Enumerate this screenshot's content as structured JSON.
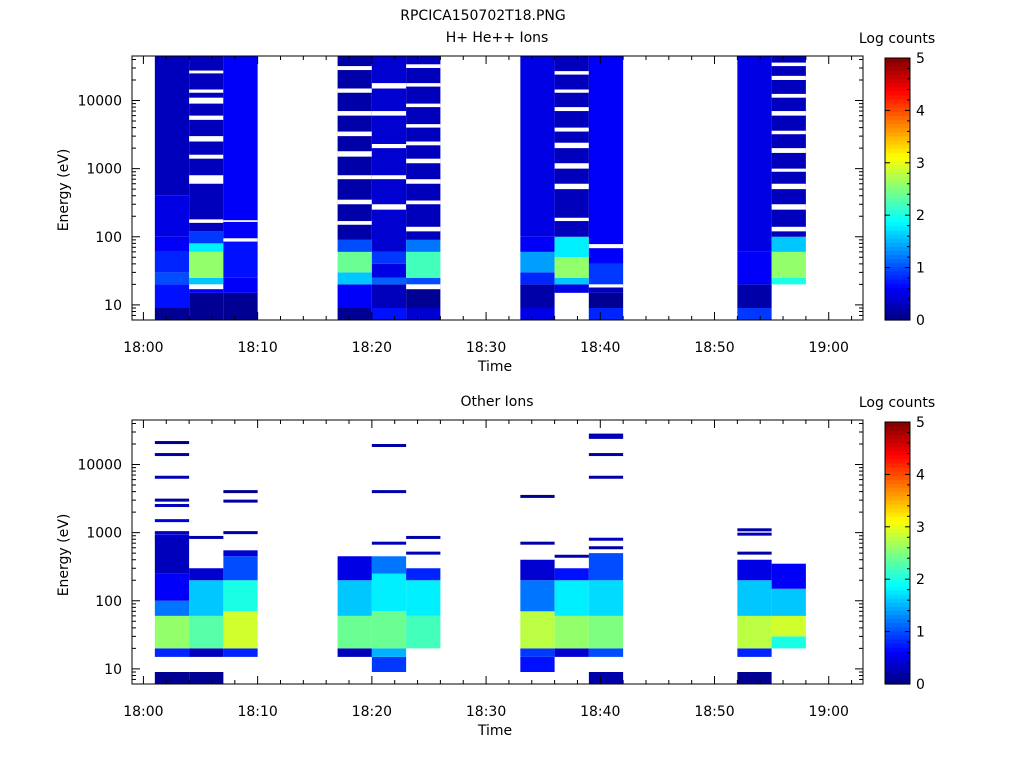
{
  "figure_title": "RPCICA150702T18.PNG",
  "colors": {
    "colormap": [
      "#00007f",
      "#0000ff",
      "#007fff",
      "#00ffff",
      "#7fff7f",
      "#ffff00",
      "#ff7f00",
      "#ff0000",
      "#7f0000"
    ]
  },
  "chart_data": [
    {
      "type": "heatmap",
      "title": "H+ He++ Ions",
      "xlabel": "Time",
      "ylabel": "Energy (eV)",
      "y_scale": "log",
      "ylim": [
        6,
        45000
      ],
      "xlim": [
        "17:59",
        "19:03"
      ],
      "x_ticks": [
        "18:00",
        "18:10",
        "18:20",
        "18:30",
        "18:40",
        "18:50",
        "19:00"
      ],
      "y_ticks": [
        "10",
        "100",
        "1000",
        "10000"
      ],
      "colorbar": {
        "label": "Log counts",
        "range": [
          0,
          5
        ],
        "ticks": [
          "0",
          "1",
          "2",
          "3",
          "4",
          "5"
        ]
      },
      "sweeps": [
        {
          "t0": "18:01",
          "t1": "18:04",
          "bands": [
            [
              6,
              9,
              0.1
            ],
            [
              9,
              20,
              0.7
            ],
            [
              20,
              30,
              1.0
            ],
            [
              30,
              60,
              0.8
            ],
            [
              60,
              100,
              0.6
            ],
            [
              100,
              400,
              0.5
            ],
            [
              400,
              45000,
              0.3
            ]
          ],
          "gaps": []
        },
        {
          "t0": "18:04",
          "t1": "18:07",
          "bands": [
            [
              6,
              15,
              0.1
            ],
            [
              15,
              20,
              0.6
            ],
            [
              20,
              25,
              1.6
            ],
            [
              25,
              60,
              2.6
            ],
            [
              60,
              80,
              1.8
            ],
            [
              80,
              120,
              0.9
            ],
            [
              120,
              45000,
              0.3
            ]
          ],
          "gaps": [
            [
              17,
              20
            ],
            [
              160,
              180
            ],
            [
              600,
              800
            ],
            [
              1400,
              1600
            ],
            [
              2500,
              3000
            ],
            [
              5200,
              6000
            ],
            [
              9000,
              11000
            ],
            [
              13000,
              14500
            ],
            [
              25000,
              27500
            ]
          ]
        },
        {
          "t0": "18:07",
          "t1": "18:10",
          "bands": [
            [
              6,
              15,
              0.1
            ],
            [
              15,
              25,
              0.6
            ],
            [
              25,
              90,
              0.7
            ],
            [
              90,
              45000,
              0.6
            ]
          ],
          "gaps": [
            [
              85,
              95
            ],
            [
              165,
              175
            ]
          ]
        },
        {
          "t0": "18:17",
          "t1": "18:20",
          "bands": [
            [
              6,
              9,
              0.1
            ],
            [
              9,
              20,
              0.6
            ],
            [
              20,
              30,
              1.6
            ],
            [
              30,
              60,
              2.4
            ],
            [
              60,
              90,
              1.0
            ],
            [
              90,
              45000,
              0.2
            ]
          ],
          "gaps": [
            [
              150,
              170
            ],
            [
              300,
              350
            ],
            [
              700,
              800
            ],
            [
              1500,
              1800
            ],
            [
              3000,
              3500
            ],
            [
              6000,
              7000
            ],
            [
              13000,
              15000
            ],
            [
              28000,
              32000
            ]
          ]
        },
        {
          "t0": "18:20",
          "t1": "18:23",
          "bands": [
            [
              6,
              9,
              0.7
            ],
            [
              9,
              20,
              0.3
            ],
            [
              20,
              25,
              1.1
            ],
            [
              25,
              40,
              0.5
            ],
            [
              40,
              60,
              0.9
            ],
            [
              60,
              45000,
              0.4
            ]
          ],
          "gaps": [
            [
              250,
              300
            ],
            [
              700,
              800
            ],
            [
              2000,
              2300
            ],
            [
              6000,
              7000
            ],
            [
              15000,
              18000
            ]
          ]
        },
        {
          "t0": "18:23",
          "t1": "18:26",
          "bands": [
            [
              6,
              9,
              0.4
            ],
            [
              9,
              20,
              0.1
            ],
            [
              20,
              25,
              1.0
            ],
            [
              25,
              60,
              2.2
            ],
            [
              60,
              90,
              1.2
            ],
            [
              90,
              45000,
              0.3
            ]
          ],
          "gaps": [
            [
              17,
              20
            ],
            [
              120,
              140
            ],
            [
              300,
              340
            ],
            [
              600,
              700
            ],
            [
              1200,
              1400
            ],
            [
              2200,
              2500
            ],
            [
              4000,
              4500
            ],
            [
              8000,
              9000
            ],
            [
              16000,
              18000
            ],
            [
              30000,
              34000
            ]
          ]
        },
        {
          "t0": "18:33",
          "t1": "18:36",
          "bands": [
            [
              6,
              9,
              0.5
            ],
            [
              9,
              20,
              0.2
            ],
            [
              20,
              30,
              0.8
            ],
            [
              30,
              60,
              1.4
            ],
            [
              60,
              100,
              0.6
            ],
            [
              100,
              45000,
              0.5
            ]
          ],
          "gaps": []
        },
        {
          "t0": "18:36",
          "t1": "18:39",
          "bands": [
            [
              6,
              15,
              0.1
            ],
            [
              15,
              20,
              0.5
            ],
            [
              20,
              25,
              1.6
            ],
            [
              25,
              50,
              2.6
            ],
            [
              50,
              100,
              1.8
            ],
            [
              100,
              45000,
              0.3
            ]
          ],
          "gaps": [
            [
              6,
              15
            ],
            [
              170,
              190
            ],
            [
              500,
              600
            ],
            [
              1000,
              1200
            ],
            [
              2000,
              2400
            ],
            [
              3500,
              4000
            ],
            [
              7000,
              8000
            ],
            [
              13000,
              14500
            ],
            [
              24000,
              27000
            ]
          ]
        },
        {
          "t0": "18:39",
          "t1": "18:42",
          "bands": [
            [
              6,
              9,
              0.8
            ],
            [
              9,
              15,
              0.1
            ],
            [
              15,
              20,
              0.3
            ],
            [
              20,
              40,
              0.9
            ],
            [
              40,
              70,
              0.6
            ],
            [
              70,
              45000,
              0.6
            ]
          ],
          "gaps": [
            [
              18,
              20
            ],
            [
              68,
              78
            ]
          ]
        },
        {
          "t0": "18:52",
          "t1": "18:55",
          "bands": [
            [
              6,
              9,
              0.9
            ],
            [
              9,
              20,
              0.2
            ],
            [
              20,
              60,
              0.6
            ],
            [
              60,
              45000,
              0.5
            ]
          ],
          "gaps": []
        },
        {
          "t0": "18:55",
          "t1": "18:58",
          "bands": [
            [
              20,
              25,
              2.0
            ],
            [
              25,
              60,
              2.6
            ],
            [
              60,
              100,
              1.6
            ],
            [
              100,
              45000,
              0.3
            ]
          ],
          "gaps": [
            [
              120,
              140
            ],
            [
              250,
              300
            ],
            [
              500,
              600
            ],
            [
              900,
              1000
            ],
            [
              1700,
              2000
            ],
            [
              3200,
              3600
            ],
            [
              6000,
              7000
            ],
            [
              11000,
              12500
            ],
            [
              20000,
              23000
            ],
            [
              32000,
              36000
            ]
          ]
        }
      ]
    },
    {
      "type": "heatmap",
      "title": "Other Ions",
      "xlabel": "Time",
      "ylabel": "Energy (eV)",
      "y_scale": "log",
      "ylim": [
        6,
        45000
      ],
      "xlim": [
        "17:59",
        "19:03"
      ],
      "x_ticks": [
        "18:00",
        "18:10",
        "18:20",
        "18:30",
        "18:40",
        "18:50",
        "19:00"
      ],
      "y_ticks": [
        "10",
        "100",
        "1000",
        "10000"
      ],
      "colorbar": {
        "label": "Log counts",
        "range": [
          0,
          5
        ],
        "ticks": [
          "0",
          "1",
          "2",
          "3",
          "4",
          "5"
        ]
      },
      "sweeps": [
        {
          "t0": "18:01",
          "t1": "18:04",
          "bands": [
            [
              6,
              9,
              0.1
            ],
            [
              15,
              20,
              0.8
            ],
            [
              20,
              60,
              2.6
            ],
            [
              60,
              100,
              1.2
            ],
            [
              100,
              250,
              0.6
            ],
            [
              250,
              900,
              0.3
            ]
          ],
          "lines": [
            [
              21000,
              0.1
            ],
            [
              14000,
              0.2
            ],
            [
              6500,
              0.3
            ],
            [
              3000,
              0.2
            ],
            [
              2500,
              0.3
            ],
            [
              1500,
              0.5
            ],
            [
              1000,
              0.3
            ],
            [
              900,
              0.4
            ]
          ]
        },
        {
          "t0": "18:04",
          "t1": "18:07",
          "bands": [
            [
              6,
              9,
              0.1
            ],
            [
              15,
              20,
              0.3
            ],
            [
              20,
              60,
              2.3
            ],
            [
              60,
              200,
              1.6
            ],
            [
              200,
              300,
              0.4
            ]
          ],
          "lines": [
            [
              850,
              0.2
            ]
          ]
        },
        {
          "t0": "18:07",
          "t1": "18:10",
          "bands": [
            [
              15,
              20,
              0.8
            ],
            [
              20,
              70,
              2.9
            ],
            [
              70,
              200,
              2.0
            ],
            [
              200,
              450,
              1.0
            ],
            [
              450,
              550,
              0.4
            ]
          ],
          "lines": [
            [
              4000,
              0.1
            ],
            [
              2900,
              0.2
            ],
            [
              1000,
              0.2
            ]
          ]
        },
        {
          "t0": "18:17",
          "t1": "18:20",
          "bands": [
            [
              15,
              20,
              0.3
            ],
            [
              20,
              60,
              2.4
            ],
            [
              60,
              200,
              1.6
            ],
            [
              200,
              450,
              0.5
            ]
          ],
          "lines": []
        },
        {
          "t0": "18:20",
          "t1": "18:23",
          "bands": [
            [
              9,
              15,
              0.9
            ],
            [
              15,
              20,
              1.5
            ],
            [
              20,
              70,
              2.4
            ],
            [
              70,
              250,
              1.8
            ],
            [
              250,
              450,
              1.2
            ]
          ],
          "lines": [
            [
              19000,
              0.2
            ],
            [
              4000,
              0.2
            ],
            [
              700,
              0.3
            ]
          ]
        },
        {
          "t0": "18:23",
          "t1": "18:26",
          "bands": [
            [
              20,
              60,
              2.2
            ],
            [
              60,
              200,
              1.8
            ],
            [
              200,
              300,
              0.8
            ]
          ],
          "lines": [
            [
              850,
              0.2
            ],
            [
              500,
              0.3
            ]
          ]
        },
        {
          "t0": "18:33",
          "t1": "18:36",
          "bands": [
            [
              9,
              15,
              0.7
            ],
            [
              15,
              20,
              0.9
            ],
            [
              20,
              70,
              2.8
            ],
            [
              70,
              200,
              1.2
            ],
            [
              200,
              400,
              0.4
            ]
          ],
          "lines": [
            [
              3400,
              0.1
            ],
            [
              700,
              0.2
            ]
          ]
        },
        {
          "t0": "18:36",
          "t1": "18:39",
          "bands": [
            [
              15,
              20,
              0.4
            ],
            [
              20,
              60,
              2.6
            ],
            [
              60,
              200,
              1.8
            ],
            [
              200,
              300,
              0.7
            ]
          ],
          "lines": [
            [
              450,
              0.2
            ]
          ]
        },
        {
          "t0": "18:39",
          "t1": "18:42",
          "bands": [
            [
              6,
              9,
              0.2
            ],
            [
              15,
              20,
              1.0
            ],
            [
              20,
              60,
              2.5
            ],
            [
              60,
              200,
              1.7
            ],
            [
              200,
              500,
              1.0
            ]
          ],
          "lines": [
            [
              27000,
              0.2
            ],
            [
              25000,
              0.3
            ],
            [
              14000,
              0.2
            ],
            [
              6500,
              0.2
            ],
            [
              800,
              0.3
            ],
            [
              600,
              0.2
            ]
          ]
        },
        {
          "t0": "18:52",
          "t1": "18:55",
          "bands": [
            [
              6,
              9,
              0.1
            ],
            [
              15,
              20,
              0.8
            ],
            [
              20,
              60,
              2.8
            ],
            [
              60,
              200,
              1.6
            ],
            [
              200,
              400,
              0.5
            ]
          ],
          "lines": [
            [
              1100,
              0.2
            ],
            [
              950,
              0.3
            ],
            [
              500,
              0.2
            ]
          ]
        },
        {
          "t0": "18:55",
          "t1": "18:58",
          "bands": [
            [
              20,
              30,
              2.0
            ],
            [
              30,
              60,
              2.9
            ],
            [
              60,
              150,
              1.6
            ],
            [
              150,
              350,
              0.6
            ]
          ],
          "lines": []
        }
      ]
    }
  ]
}
